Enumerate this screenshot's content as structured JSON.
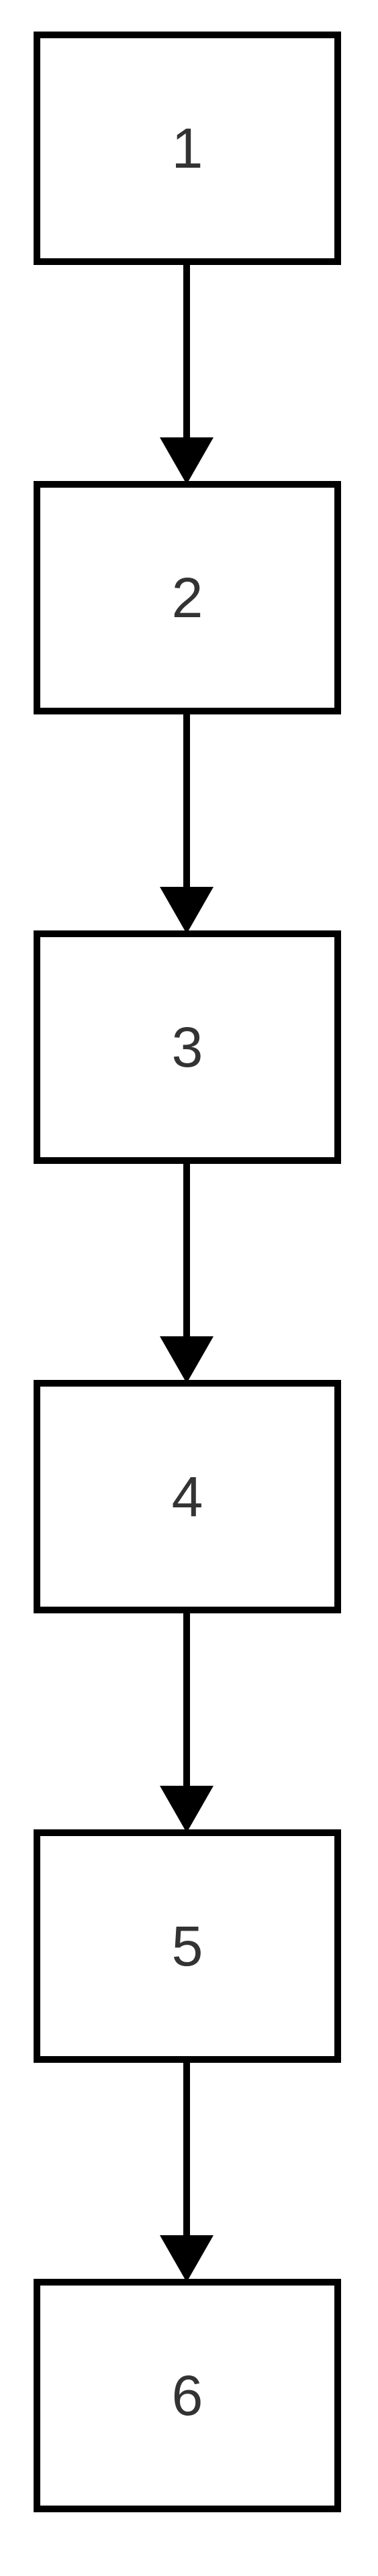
{
  "diagram": {
    "type": "flowchart",
    "direction": "top-to-bottom",
    "colors": {
      "box_border": "#000000",
      "box_fill": "#ffffff",
      "label_text": "#333333",
      "arrow": "#000000",
      "background": "#ffffff"
    },
    "nodes": [
      {
        "id": "n1",
        "label": "1"
      },
      {
        "id": "n2",
        "label": "2"
      },
      {
        "id": "n3",
        "label": "3"
      },
      {
        "id": "n4",
        "label": "4"
      },
      {
        "id": "n5",
        "label": "5"
      },
      {
        "id": "n6",
        "label": "6"
      }
    ],
    "edges": [
      {
        "from": "n1",
        "to": "n2"
      },
      {
        "from": "n2",
        "to": "n3"
      },
      {
        "from": "n3",
        "to": "n4"
      },
      {
        "from": "n4",
        "to": "n5"
      },
      {
        "from": "n5",
        "to": "n6"
      }
    ]
  }
}
